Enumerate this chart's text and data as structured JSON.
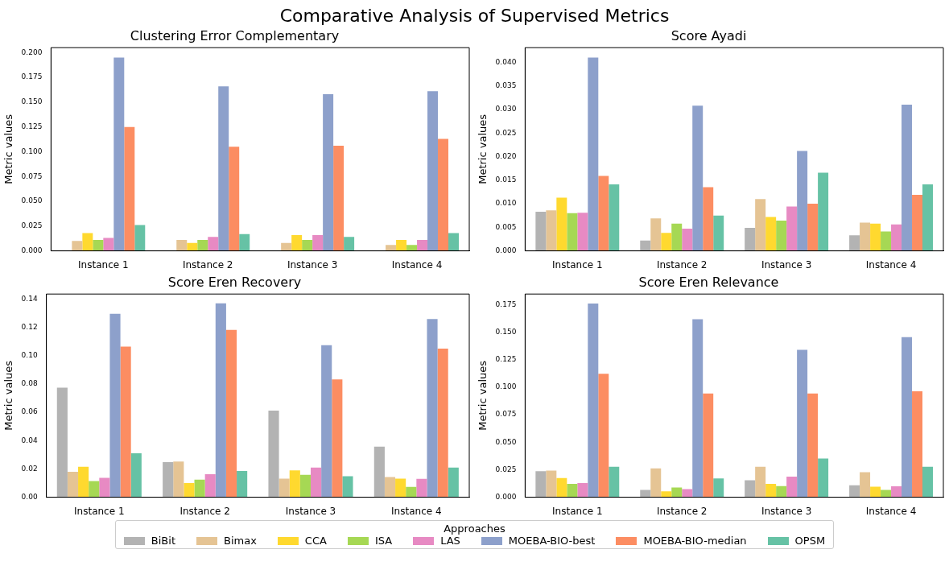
{
  "chart_data": [
    {
      "type": "bar",
      "title": "Clustering Error Complementary",
      "ylabel": "Metric values",
      "legend": "bottom",
      "legend_title": "Approaches",
      "annotations": [
        "Comparative Analysis of Supervised Metrics"
      ],
      "categories": [
        "Instance 1",
        "Instance 2",
        "Instance 3",
        "Instance 4"
      ],
      "ylim": [
        0,
        0.205
      ],
      "yticks": [
        {
          "value": 0,
          "label": "0.000"
        },
        {
          "value": 0.025,
          "label": "0.025"
        },
        {
          "value": 0.05,
          "label": "0.050"
        },
        {
          "value": 0.075,
          "label": "0.075"
        },
        {
          "value": 0.1,
          "label": "0.100"
        },
        {
          "value": 0.125,
          "label": "0.125"
        },
        {
          "value": 0.15,
          "label": "0.150"
        },
        {
          "value": 0.175,
          "label": "0.175"
        },
        {
          "value": 0.2,
          "label": "0.200"
        }
      ],
      "series": [
        {
          "name": "BiBit",
          "color": "#b3b3b3",
          "values": [
            0,
            0,
            0,
            0
          ]
        },
        {
          "name": "Bimax",
          "color": "#e5c494",
          "values": [
            0.01,
            0.011,
            0.008,
            0.006
          ]
        },
        {
          "name": "CCA",
          "color": "#ffd92f",
          "values": [
            0.018,
            0.008,
            0.016,
            0.011
          ]
        },
        {
          "name": "ISA",
          "color": "#a6d854",
          "values": [
            0.011,
            0.011,
            0.011,
            0.006
          ]
        },
        {
          "name": "LAS",
          "color": "#e78ac3",
          "values": [
            0.013,
            0.014,
            0.016,
            0.011
          ]
        },
        {
          "name": "MOEBA-BIO-best",
          "color": "#8da0cb",
          "values": [
            0.195,
            0.166,
            0.158,
            0.161
          ]
        },
        {
          "name": "MOEBA-BIO-median",
          "color": "#fc8d62",
          "values": [
            0.125,
            0.105,
            0.106,
            0.113
          ]
        },
        {
          "name": "OPSM",
          "color": "#66c2a5",
          "values": [
            0.026,
            0.017,
            0.014,
            0.018
          ]
        }
      ]
    },
    {
      "type": "bar",
      "title": "Score Ayadi",
      "ylabel": "Metric values",
      "categories": [
        "Instance 1",
        "Instance 2",
        "Instance 3",
        "Instance 4"
      ],
      "ylim": [
        0,
        0.0431
      ],
      "yticks": [
        {
          "value": 0,
          "label": "0.000"
        },
        {
          "value": 0.005,
          "label": "0.005"
        },
        {
          "value": 0.01,
          "label": "0.010"
        },
        {
          "value": 0.015,
          "label": "0.015"
        },
        {
          "value": 0.02,
          "label": "0.020"
        },
        {
          "value": 0.025,
          "label": "0.025"
        },
        {
          "value": 0.03,
          "label": "0.030"
        },
        {
          "value": 0.035,
          "label": "0.035"
        },
        {
          "value": 0.04,
          "label": "0.040"
        }
      ],
      "series": [
        {
          "color": "#b3b3b3",
          "values": [
            0.0083,
            0.0022,
            0.0049,
            0.0033
          ]
        },
        {
          "color": "#e5c494",
          "values": [
            0.0086,
            0.0069,
            0.011,
            0.006
          ]
        },
        {
          "color": "#ffd92f",
          "values": [
            0.0113,
            0.0038,
            0.0072,
            0.0058
          ]
        },
        {
          "color": "#a6d854",
          "values": [
            0.008,
            0.0058,
            0.0064,
            0.0041
          ]
        },
        {
          "color": "#e78ac3",
          "values": [
            0.0081,
            0.0047,
            0.0094,
            0.0056
          ]
        },
        {
          "color": "#8da0cb",
          "values": [
            0.041,
            0.0308,
            0.0212,
            0.031
          ]
        },
        {
          "color": "#fc8d62",
          "values": [
            0.0159,
            0.0135,
            0.01,
            0.0119
          ]
        },
        {
          "color": "#66c2a5",
          "values": [
            0.0141,
            0.0075,
            0.0166,
            0.0141
          ]
        }
      ]
    },
    {
      "type": "bar",
      "title": "Score Eren Recovery",
      "ylabel": "Metric values",
      "categories": [
        "Instance 1",
        "Instance 2",
        "Instance 3",
        "Instance 4"
      ],
      "ylim": [
        0,
        0.1436
      ],
      "yticks": [
        {
          "value": 0,
          "label": "0.00"
        },
        {
          "value": 0.02,
          "label": "0.02"
        },
        {
          "value": 0.04,
          "label": "0.04"
        },
        {
          "value": 0.06,
          "label": "0.06"
        },
        {
          "value": 0.08,
          "label": "0.08"
        },
        {
          "value": 0.1,
          "label": "0.10"
        },
        {
          "value": 0.12,
          "label": "0.12"
        },
        {
          "value": 0.14,
          "label": "0.14"
        }
      ],
      "series": [
        {
          "color": "#b3b3b3",
          "values": [
            0.0775,
            0.0248,
            0.0612,
            0.0358
          ]
        },
        {
          "color": "#e5c494",
          "values": [
            0.018,
            0.0253,
            0.0132,
            0.0143
          ]
        },
        {
          "color": "#ffd92f",
          "values": [
            0.0215,
            0.01,
            0.019,
            0.0132
          ]
        },
        {
          "color": "#a6d854",
          "values": [
            0.0115,
            0.0125,
            0.0158,
            0.0073
          ]
        },
        {
          "color": "#e78ac3",
          "values": [
            0.0137,
            0.0163,
            0.021,
            0.013
          ]
        },
        {
          "color": "#8da0cb",
          "values": [
            0.1297,
            0.137,
            0.1075,
            0.126
          ]
        },
        {
          "color": "#fc8d62",
          "values": [
            0.1065,
            0.1182,
            0.0833,
            0.105
          ]
        },
        {
          "color": "#66c2a5",
          "values": [
            0.031,
            0.0185,
            0.0148,
            0.021
          ]
        }
      ]
    },
    {
      "type": "bar",
      "title": "Score Eren Relevance",
      "ylabel": "Metric values",
      "categories": [
        "Instance 1",
        "Instance 2",
        "Instance 3",
        "Instance 4"
      ],
      "ylim": [
        0,
        0.1847
      ],
      "yticks": [
        {
          "value": 0,
          "label": "0.000"
        },
        {
          "value": 0.025,
          "label": "0.025"
        },
        {
          "value": 0.05,
          "label": "0.050"
        },
        {
          "value": 0.075,
          "label": "0.075"
        },
        {
          "value": 0.1,
          "label": "0.100"
        },
        {
          "value": 0.125,
          "label": "0.125"
        },
        {
          "value": 0.15,
          "label": "0.150"
        },
        {
          "value": 0.175,
          "label": "0.175"
        }
      ],
      "series": [
        {
          "color": "#b3b3b3",
          "values": [
            0.0237,
            0.0067,
            0.0155,
            0.0108
          ]
        },
        {
          "color": "#e5c494",
          "values": [
            0.0243,
            0.0262,
            0.0277,
            0.0228
          ]
        },
        {
          "color": "#ffd92f",
          "values": [
            0.0175,
            0.0053,
            0.0122,
            0.0095
          ]
        },
        {
          "color": "#a6d854",
          "values": [
            0.0122,
            0.0088,
            0.0102,
            0.0067
          ]
        },
        {
          "color": "#e78ac3",
          "values": [
            0.0128,
            0.0073,
            0.0188,
            0.01
          ]
        },
        {
          "color": "#8da0cb",
          "values": [
            0.176,
            0.1618,
            0.134,
            0.1455
          ]
        },
        {
          "color": "#fc8d62",
          "values": [
            0.1123,
            0.0942,
            0.0942,
            0.0963
          ]
        },
        {
          "color": "#66c2a5",
          "values": [
            0.0277,
            0.017,
            0.0352,
            0.0277
          ]
        }
      ]
    }
  ]
}
